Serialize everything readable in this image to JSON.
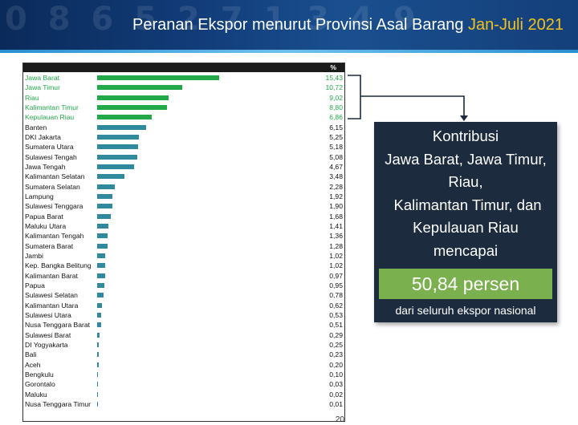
{
  "header": {
    "title_main": "Peranan Ekspor menurut Provinsi Asal Barang ",
    "title_period": "Jan-Juli 2021",
    "decor": "0 8 6 5 2 7 1 3 4 9"
  },
  "colors": {
    "highlight_bar": "#22a94a",
    "other_bar": "#2f8a9e",
    "box_bg": "#1c2b3e",
    "box_green": "#7ab04e",
    "period_text": "#f2c21b"
  },
  "info_box": {
    "heading_lines": [
      "Kontribusi",
      "Jawa Barat, Jawa Timur,",
      "Riau,",
      " Kalimantan Timur, dan",
      "Kepulauan Riau",
      "mencapai"
    ],
    "value": "50,84 persen",
    "footer": "dari seluruh ekspor nasional"
  },
  "page_number": "20",
  "chart_data": {
    "type": "bar",
    "orientation": "horizontal",
    "column_header": "%",
    "categories": [
      "Jawa Barat",
      "Jawa Timur",
      "Riau",
      "Kalimantan Timur",
      "Kepulauan Riau",
      "Banten",
      "DKI Jakarta",
      "Sumatera Utara",
      "Sulawesi Tengah",
      "Jawa Tengah",
      "Kalimantan Selatan",
      "Sumatera Selatan",
      "Lampung",
      "Sulawesi Tenggara",
      "Papua Barat",
      "Maluku Utara",
      "Kalimantan Tengah",
      "Sumatera Barat",
      "Jambi",
      "Kep. Bangka Belitung",
      "Kalimantan Barat",
      "Papua",
      "Sulawesi Selatan",
      "Kalimantan Utara",
      "Sulawesi Utara",
      "Nusa Tenggara Barat",
      "Sulawesi Barat",
      "DI Yogyakarta",
      "Bali",
      "Aceh",
      "Bengkulu",
      "Gorontalo",
      "Maluku",
      "Nusa Tenggara Timur"
    ],
    "values": [
      15.43,
      10.72,
      9.02,
      8.8,
      6.86,
      6.15,
      5.25,
      5.18,
      5.08,
      4.67,
      3.48,
      2.28,
      1.92,
      1.9,
      1.68,
      1.41,
      1.36,
      1.28,
      1.02,
      1.02,
      0.97,
      0.95,
      0.78,
      0.62,
      0.53,
      0.51,
      0.29,
      0.25,
      0.23,
      0.2,
      0.1,
      0.03,
      0.02,
      0.01
    ],
    "labels": [
      "15,43",
      "10,72",
      "9,02",
      "8,80",
      "6,86",
      "6,15",
      "5,25",
      "5,18",
      "5,08",
      "4,67",
      "3,48",
      "2,28",
      "1,92",
      "1,90",
      "1,68",
      "1,41",
      "1,36",
      "1,28",
      "1,02",
      "1,02",
      "0,97",
      "0,95",
      "0,78",
      "0,62",
      "0,53",
      "0,51",
      "0,29",
      "0,25",
      "0,23",
      "0,20",
      "0,10",
      "0,03",
      "0,02",
      "0,01"
    ],
    "highlighted_count": 5,
    "xlim": [
      0,
      15.43
    ]
  }
}
